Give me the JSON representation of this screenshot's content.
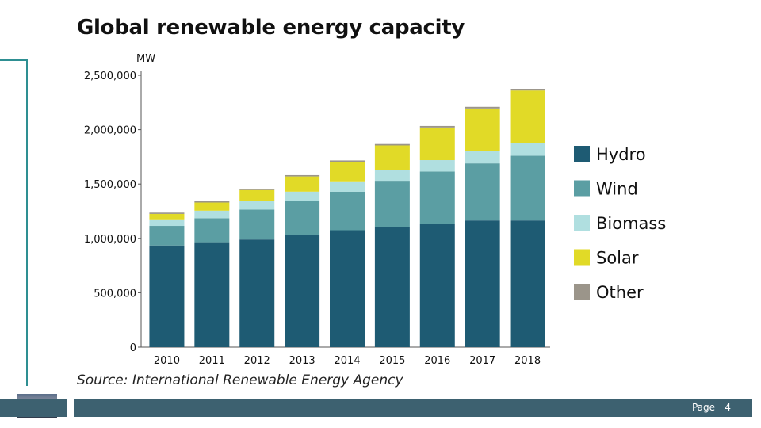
{
  "slide": {
    "title": "Global renewable energy capacity",
    "source": "Source: International Renewable Energy Agency",
    "page_label": "Page",
    "page_number": "4"
  },
  "chart_data": {
    "type": "bar",
    "stacked": true,
    "title": "Global renewable energy capacity",
    "ylabel": "MW",
    "xlabel": "",
    "ylim": [
      0,
      2500000
    ],
    "yticks": [
      0,
      500000,
      1000000,
      1500000,
      2000000,
      2500000
    ],
    "ytick_labels": [
      "0",
      "500,000",
      "1,000,000",
      "1,500,000",
      "2,000,000",
      "2,500,000"
    ],
    "categories": [
      "2010",
      "2011",
      "2012",
      "2013",
      "2014",
      "2015",
      "2016",
      "2017",
      "2018"
    ],
    "series": [
      {
        "name": "Hydro",
        "color": "#1e5b73",
        "values": [
          935000,
          965000,
          990000,
          1035000,
          1075000,
          1105000,
          1135000,
          1165000,
          1165000
        ]
      },
      {
        "name": "Wind",
        "color": "#5b9ea3",
        "values": [
          180000,
          220000,
          275000,
          310000,
          355000,
          425000,
          480000,
          525000,
          595000
        ]
      },
      {
        "name": "Biomass",
        "color": "#b0dfe0",
        "values": [
          60000,
          70000,
          80000,
          85000,
          95000,
          100000,
          105000,
          115000,
          120000
        ]
      },
      {
        "name": "Solar",
        "color": "#e1da27",
        "values": [
          50000,
          75000,
          100000,
          140000,
          180000,
          225000,
          300000,
          390000,
          480000
        ]
      },
      {
        "name": "Other",
        "color": "#9b958a",
        "values": [
          12000,
          12000,
          12000,
          12000,
          12000,
          13000,
          14000,
          15000,
          16000
        ]
      }
    ],
    "legend": "right",
    "grid": false
  }
}
